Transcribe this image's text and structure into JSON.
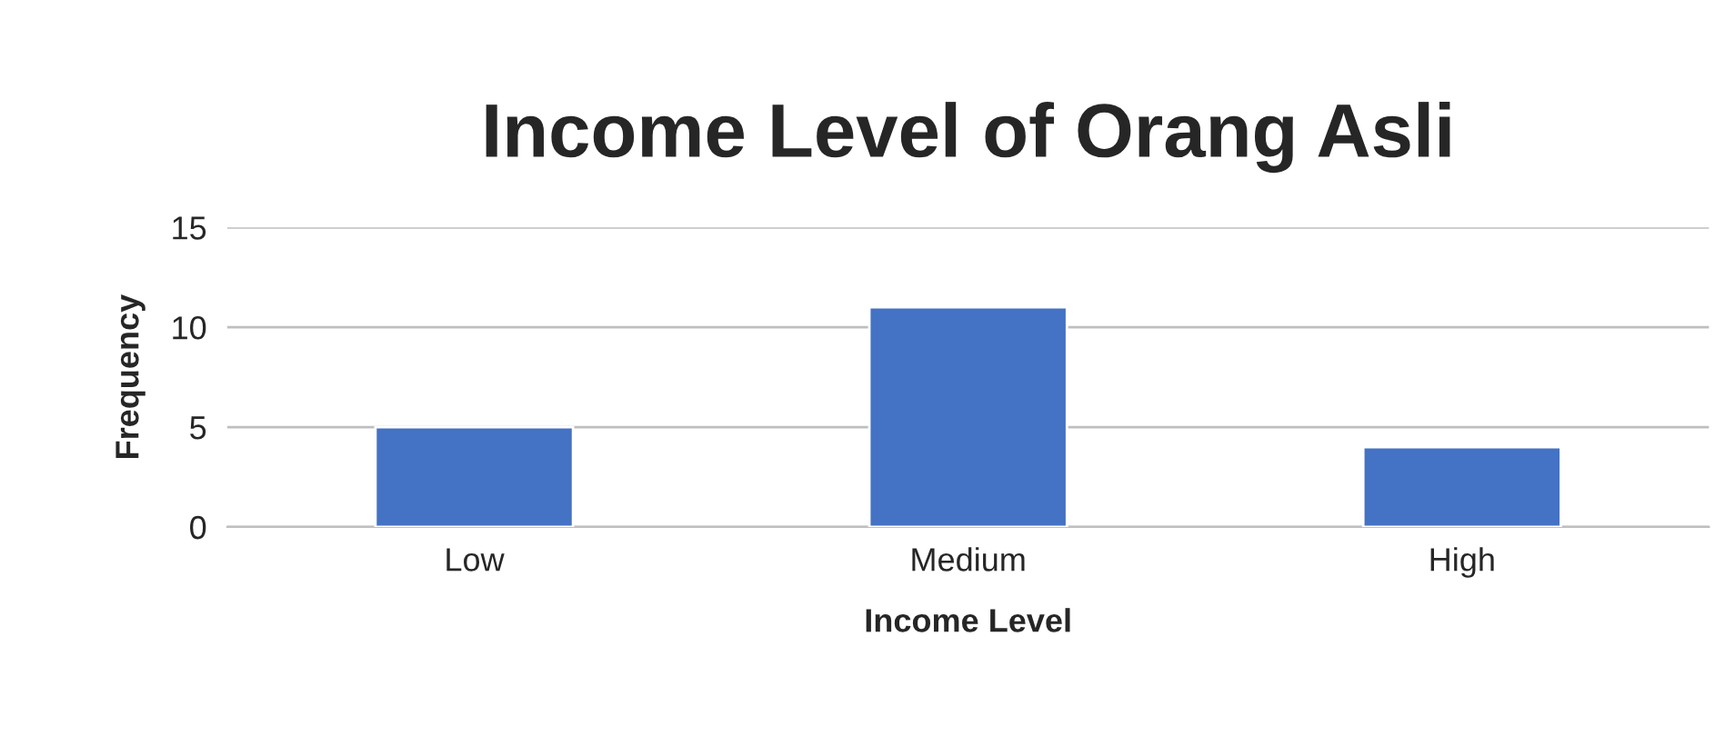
{
  "chart_data": {
    "type": "bar",
    "title": "Income Level of Orang Asli",
    "xlabel": "Income Level",
    "ylabel": "Frequency",
    "categories": [
      "Low",
      "Medium",
      "High"
    ],
    "values": [
      5,
      11,
      4
    ],
    "color": "#4472c4",
    "ylim": [
      0,
      15
    ],
    "yticks": [
      0,
      5,
      10,
      15
    ],
    "grid": "y",
    "legend": false
  }
}
